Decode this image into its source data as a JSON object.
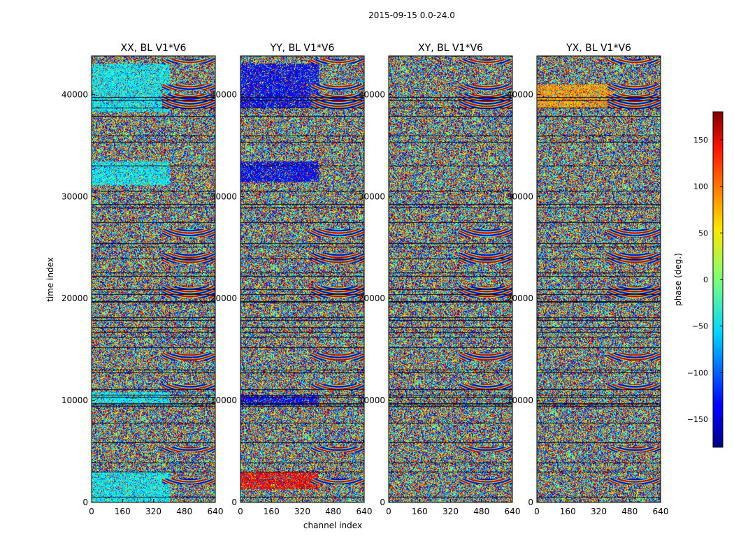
{
  "figure": {
    "suptitle": "2015-09-15 0.0-24.0",
    "xlabel": "channel index",
    "ylabel": "time index",
    "colorbar_label": "phase (deg.)"
  },
  "chart_data": {
    "type": "heatmap",
    "colormap": "jet",
    "clim": [
      -180,
      180
    ],
    "xlim": [
      0,
      640
    ],
    "ylim": [
      0,
      43800
    ],
    "xticks": [
      0,
      160,
      320,
      480,
      640
    ],
    "yticks": [
      0,
      10000,
      20000,
      30000,
      40000
    ],
    "colorbar_ticks": [
      -150,
      -100,
      -50,
      0,
      50,
      100,
      150
    ],
    "panels": [
      {
        "title": "XX, BL V1*V6",
        "hint": "cyan"
      },
      {
        "title": "YY, BL V1*V6",
        "hint": "blue"
      },
      {
        "title": "XY, BL V1*V6",
        "hint": "mixed"
      },
      {
        "title": "YX, BL V1*V6",
        "hint": "warm"
      }
    ]
  },
  "colors": {
    "jet_min": "#000080",
    "jet_max": "#800000",
    "gap": "#0a0a2a"
  }
}
